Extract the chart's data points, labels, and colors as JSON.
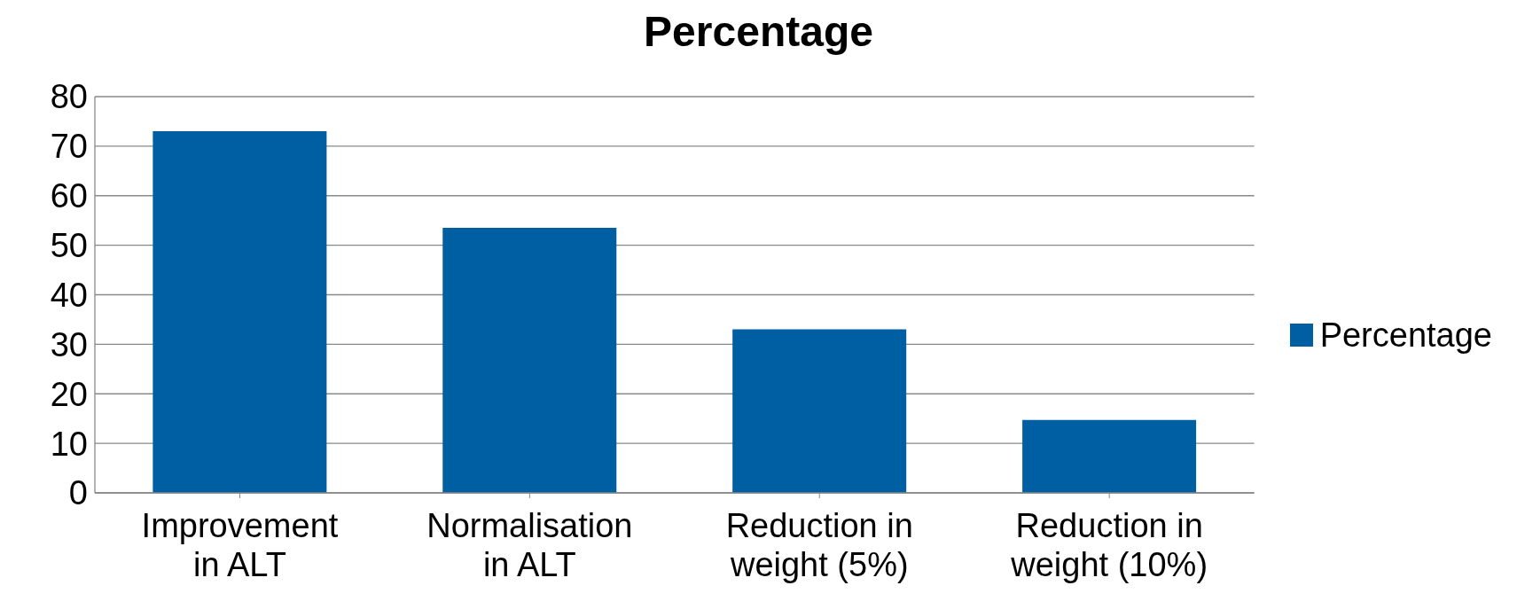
{
  "chart_data": {
    "type": "bar",
    "title": "Percentage",
    "categories": [
      "Improvement in ALT",
      "Normalisation in ALT",
      "Reduction in weight (5%)",
      "Reduction in weight (10%)"
    ],
    "series": [
      {
        "name": "Percentage",
        "color": "#005ea2",
        "values": [
          73,
          53.5,
          33,
          14.7
        ]
      }
    ],
    "ylim": [
      0,
      80
    ],
    "yticks": [
      0,
      10,
      20,
      30,
      40,
      50,
      60,
      70,
      80
    ],
    "grid": "y",
    "legend": "right"
  }
}
